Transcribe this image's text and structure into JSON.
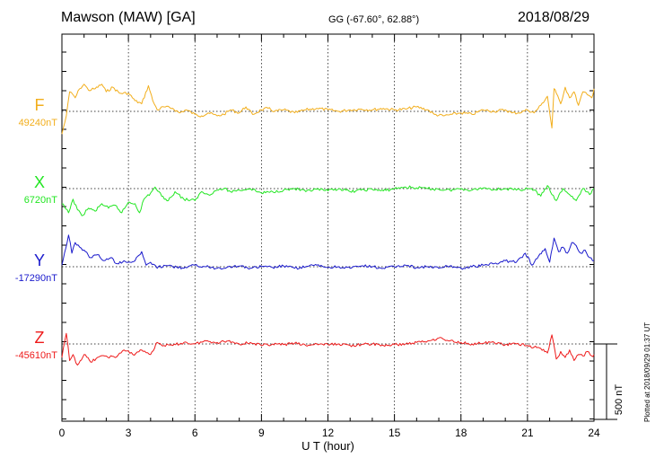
{
  "header": {
    "station": "Mawson (MAW)  [GA]",
    "coords": "GG (-67.60°,  62.88°)",
    "date": "2018/08/29"
  },
  "footer": {
    "credit": "Plotted at 2018/09/29 01:37 UT"
  },
  "chart_data": {
    "type": "line",
    "xlabel": "U T (hour)",
    "xlim": [
      0,
      24
    ],
    "xticks": [
      0,
      3,
      6,
      9,
      12,
      15,
      18,
      21,
      24
    ],
    "grid": true,
    "scale_bar": {
      "label": "500 nT",
      "value_nT": 500
    },
    "series": [
      {
        "name": "F",
        "baseline_label": "49240nT",
        "baseline_nT": 49240,
        "color": "#f2ae1c",
        "x": [
          0,
          0.2,
          0.35,
          0.5,
          0.6,
          0.8,
          1,
          1.2,
          1.5,
          1.8,
          2,
          2.3,
          2.6,
          3,
          3.3,
          3.6,
          3.9,
          4.1,
          4.3,
          4.6,
          5,
          5.3,
          5.6,
          6,
          6.3,
          6.6,
          7,
          7.3,
          7.6,
          8,
          8.3,
          8.6,
          9,
          9.3,
          9.6,
          10,
          10.5,
          11,
          11.5,
          12,
          12.5,
          13,
          13.5,
          14,
          14.5,
          15,
          15.5,
          16,
          16.5,
          16.8,
          17.2,
          17.6,
          18,
          18.5,
          19,
          19.5,
          20,
          20.3,
          20.6,
          21,
          21.3,
          21.6,
          21.9,
          22.1,
          22.2,
          22.3,
          22.5,
          22.7,
          22.9,
          23.1,
          23.3,
          23.5,
          23.7,
          23.9,
          24
        ],
        "y": [
          49090,
          49210,
          49370,
          49350,
          49330,
          49390,
          49420,
          49380,
          49390,
          49420,
          49370,
          49400,
          49360,
          49360,
          49310,
          49290,
          49410,
          49310,
          49250,
          49270,
          49260,
          49230,
          49250,
          49220,
          49210,
          49230,
          49210,
          49220,
          49250,
          49230,
          49270,
          49220,
          49250,
          49260,
          49240,
          49250,
          49230,
          49250,
          49260,
          49250,
          49240,
          49250,
          49255,
          49250,
          49260,
          49250,
          49255,
          49270,
          49250,
          49220,
          49210,
          49220,
          49230,
          49220,
          49250,
          49240,
          49250,
          49230,
          49230,
          49250,
          49230,
          49280,
          49340,
          49130,
          49390,
          49360,
          49290,
          49400,
          49330,
          49370,
          49280,
          49370,
          49350,
          49330,
          49390
        ]
      },
      {
        "name": "X",
        "baseline_label": "6720nT",
        "baseline_nT": 6720,
        "color": "#22e622",
        "x": [
          0,
          0.3,
          0.5,
          0.7,
          0.9,
          1.2,
          1.5,
          1.8,
          2.1,
          2.4,
          2.7,
          3,
          3.3,
          3.5,
          3.7,
          4,
          4.2,
          4.5,
          4.8,
          5.1,
          5.5,
          6,
          6.3,
          6.6,
          7,
          7.3,
          7.6,
          8,
          8.5,
          9,
          9.5,
          10,
          10.5,
          11,
          11.5,
          12,
          12.5,
          13,
          13.5,
          14,
          14.5,
          15,
          15.5,
          16,
          16.5,
          17,
          17.5,
          18,
          18.5,
          19,
          19.5,
          20,
          20.5,
          21,
          21.3,
          21.6,
          21.9,
          22.1,
          22.3,
          22.6,
          22.9,
          23.2,
          23.5,
          23.8,
          24
        ],
        "y": [
          6620,
          6560,
          6650,
          6580,
          6540,
          6590,
          6570,
          6620,
          6590,
          6610,
          6560,
          6630,
          6620,
          6560,
          6650,
          6690,
          6730,
          6670,
          6640,
          6700,
          6650,
          6640,
          6700,
          6680,
          6710,
          6720,
          6700,
          6710,
          6720,
          6690,
          6700,
          6710,
          6720,
          6700,
          6715,
          6705,
          6720,
          6700,
          6710,
          6715,
          6705,
          6720,
          6730,
          6725,
          6720,
          6715,
          6710,
          6720,
          6710,
          6725,
          6715,
          6720,
          6710,
          6720,
          6710,
          6670,
          6740,
          6680,
          6640,
          6720,
          6680,
          6640,
          6720,
          6680,
          6720
        ]
      },
      {
        "name": "Y",
        "baseline_label": "-17290nT",
        "baseline_nT": -17290,
        "color": "#1a1acc",
        "x": [
          0,
          0.3,
          0.45,
          0.6,
          0.8,
          1,
          1.3,
          1.6,
          1.9,
          2.2,
          2.5,
          2.8,
          3,
          3.3,
          3.6,
          3.8,
          4,
          4.3,
          4.6,
          5,
          5.5,
          6,
          6.5,
          7,
          7.5,
          8,
          8.5,
          9,
          9.5,
          10,
          10.5,
          11,
          11.5,
          12,
          12.5,
          13,
          13.5,
          14,
          14.5,
          15,
          15.5,
          16,
          16.5,
          17,
          17.5,
          18,
          18.5,
          19,
          19.5,
          20,
          20.5,
          20.9,
          21.2,
          21.5,
          21.8,
          22,
          22.2,
          22.4,
          22.6,
          22.8,
          23,
          23.2,
          23.4,
          23.6,
          23.8,
          24
        ],
        "y": [
          -17280,
          -17080,
          -17200,
          -17130,
          -17160,
          -17180,
          -17230,
          -17210,
          -17250,
          -17230,
          -17270,
          -17250,
          -17260,
          -17250,
          -17190,
          -17280,
          -17260,
          -17300,
          -17280,
          -17290,
          -17300,
          -17280,
          -17290,
          -17300,
          -17290,
          -17285,
          -17300,
          -17290,
          -17295,
          -17285,
          -17300,
          -17290,
          -17280,
          -17295,
          -17290,
          -17300,
          -17285,
          -17290,
          -17300,
          -17290,
          -17280,
          -17295,
          -17290,
          -17300,
          -17285,
          -17300,
          -17290,
          -17280,
          -17270,
          -17250,
          -17260,
          -17200,
          -17280,
          -17220,
          -17170,
          -17260,
          -17100,
          -17190,
          -17160,
          -17200,
          -17130,
          -17150,
          -17200,
          -17180,
          -17230,
          -17250
        ]
      },
      {
        "name": "Z",
        "baseline_label": "-45610nT",
        "baseline_nT": -45610,
        "color": "#ee1a1a",
        "x": [
          0,
          0.2,
          0.35,
          0.5,
          0.7,
          1,
          1.3,
          1.6,
          2,
          2.4,
          2.8,
          3.2,
          3.6,
          4,
          4.3,
          4.6,
          5,
          5.5,
          6,
          6.5,
          7,
          7.5,
          8,
          8.5,
          9,
          9.5,
          10,
          10.5,
          11,
          11.5,
          12,
          12.5,
          13,
          13.5,
          14,
          14.5,
          15,
          15.5,
          16,
          16.5,
          17,
          17.5,
          18,
          18.5,
          19,
          19.5,
          20,
          20.5,
          21,
          21.3,
          21.6,
          21.9,
          22.1,
          22.3,
          22.5,
          22.7,
          22.9,
          23.1,
          23.3,
          23.5,
          23.7,
          23.9,
          24
        ],
        "y": [
          -45700,
          -45540,
          -45720,
          -45680,
          -45750,
          -45680,
          -45730,
          -45700,
          -45690,
          -45700,
          -45650,
          -45680,
          -45650,
          -45680,
          -45600,
          -45620,
          -45620,
          -45600,
          -45610,
          -45590,
          -45600,
          -45590,
          -45610,
          -45600,
          -45620,
          -45610,
          -45615,
          -45605,
          -45620,
          -45610,
          -45615,
          -45610,
          -45620,
          -45615,
          -45610,
          -45620,
          -45615,
          -45610,
          -45600,
          -45590,
          -45570,
          -45590,
          -45600,
          -45610,
          -45605,
          -45600,
          -45615,
          -45610,
          -45620,
          -45630,
          -45640,
          -45670,
          -45550,
          -45710,
          -45660,
          -45700,
          -45650,
          -45720,
          -45680,
          -45690,
          -45660,
          -45690,
          -45680
        ]
      }
    ]
  }
}
